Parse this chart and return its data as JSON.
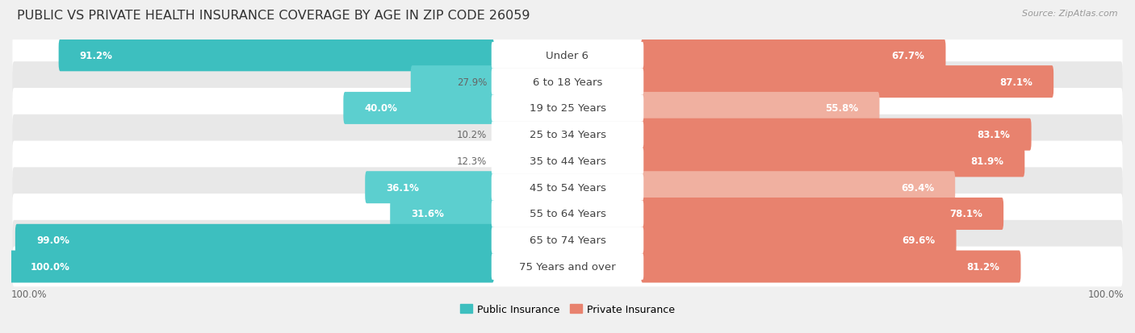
{
  "title": "PUBLIC VS PRIVATE HEALTH INSURANCE COVERAGE BY AGE IN ZIP CODE 26059",
  "source": "Source: ZipAtlas.com",
  "categories": [
    "Under 6",
    "6 to 18 Years",
    "19 to 25 Years",
    "25 to 34 Years",
    "35 to 44 Years",
    "45 to 54 Years",
    "55 to 64 Years",
    "65 to 74 Years",
    "75 Years and over"
  ],
  "public_values": [
    91.2,
    27.9,
    40.0,
    10.2,
    12.3,
    36.1,
    31.6,
    99.0,
    100.0
  ],
  "private_values": [
    67.7,
    87.1,
    55.8,
    83.1,
    81.9,
    69.4,
    78.1,
    69.6,
    81.2
  ],
  "public_color": "#3dbfbf",
  "private_color": "#e8826e",
  "private_color_light": "#f0b0a0",
  "public_label": "Public Insurance",
  "private_label": "Private Insurance",
  "bg_color": "#f0f0f0",
  "row_bg_white": "#ffffff",
  "row_bg_gray": "#e8e8e8",
  "max_val": 100.0,
  "title_fontsize": 11.5,
  "cat_fontsize": 9.5,
  "bar_label_fontsize": 8.5,
  "source_fontsize": 8,
  "legend_fontsize": 9
}
